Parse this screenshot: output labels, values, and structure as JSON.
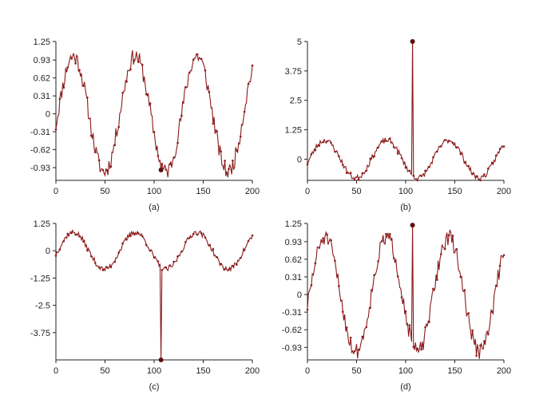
{
  "colors": {
    "series": "#8b1a1a",
    "marker": "#5a0e0e",
    "axis": "#222222"
  },
  "chart_data": [
    {
      "type": "line",
      "caption": "(a)",
      "xlim": [
        0,
        200
      ],
      "ylim": [
        -1.15,
        1.25
      ],
      "x_ticks": [
        0,
        50,
        100,
        150,
        200
      ],
      "x_tick_labels": [
        "0",
        "50",
        "100",
        "150",
        "200"
      ],
      "y_ticks": [
        1.25,
        0.93,
        0.62,
        0.31,
        0,
        -0.31,
        -0.62,
        -0.93
      ],
      "y_tick_labels": [
        "1.25",
        "0.93",
        "0.62",
        "0.31",
        "0",
        "-0.31",
        "-0.62",
        "-0.93"
      ],
      "amplitude": 1.0,
      "period": 63,
      "noise": 0.14,
      "seed": 11,
      "outlier": {
        "x": 107,
        "y": -0.97
      }
    },
    {
      "type": "line",
      "caption": "(b)",
      "xlim": [
        0,
        200
      ],
      "ylim": [
        -0.9,
        5.0
      ],
      "x_ticks": [
        0,
        50,
        100,
        150,
        200
      ],
      "x_tick_labels": [
        "0",
        "50",
        "100",
        "150",
        "200"
      ],
      "y_ticks": [
        5,
        3.75,
        2.5,
        1.25,
        0
      ],
      "y_tick_labels": [
        "5",
        "3.75",
        "2.5",
        "1.25",
        "0"
      ],
      "amplitude": 0.8,
      "period": 63,
      "noise": 0.12,
      "seed": 23,
      "outlier": {
        "x": 107,
        "y": 5.0
      }
    },
    {
      "type": "line",
      "caption": "(c)",
      "xlim": [
        0,
        200
      ],
      "ylim": [
        -5.0,
        1.25
      ],
      "x_ticks": [
        0,
        50,
        100,
        150,
        200
      ],
      "x_tick_labels": [
        "0",
        "50",
        "100",
        "150",
        "200"
      ],
      "y_ticks": [
        1.25,
        0,
        -1.25,
        -2.5,
        -3.75
      ],
      "y_tick_labels": [
        "1.25",
        "0",
        "-1.25",
        "-2.5",
        "-3.75"
      ],
      "amplitude": 0.85,
      "period": 63,
      "noise": 0.12,
      "seed": 37,
      "outlier": {
        "x": 107,
        "y": -5.0
      }
    },
    {
      "type": "line",
      "caption": "(d)",
      "xlim": [
        0,
        200
      ],
      "ylim": [
        -1.15,
        1.25
      ],
      "x_ticks": [
        0,
        50,
        100,
        150,
        200
      ],
      "x_tick_labels": [
        "0",
        "50",
        "100",
        "150",
        "200"
      ],
      "y_ticks": [
        1.25,
        0.93,
        0.62,
        0.31,
        0,
        -0.31,
        -0.62,
        -0.93
      ],
      "y_tick_labels": [
        "1.25",
        "0.93",
        "0.62",
        "0.31",
        "0",
        "-0.31",
        "-0.62",
        "-0.93"
      ],
      "amplitude": 1.0,
      "period": 63,
      "noise": 0.14,
      "seed": 51,
      "outlier": {
        "x": 107,
        "y": 1.22
      }
    }
  ]
}
